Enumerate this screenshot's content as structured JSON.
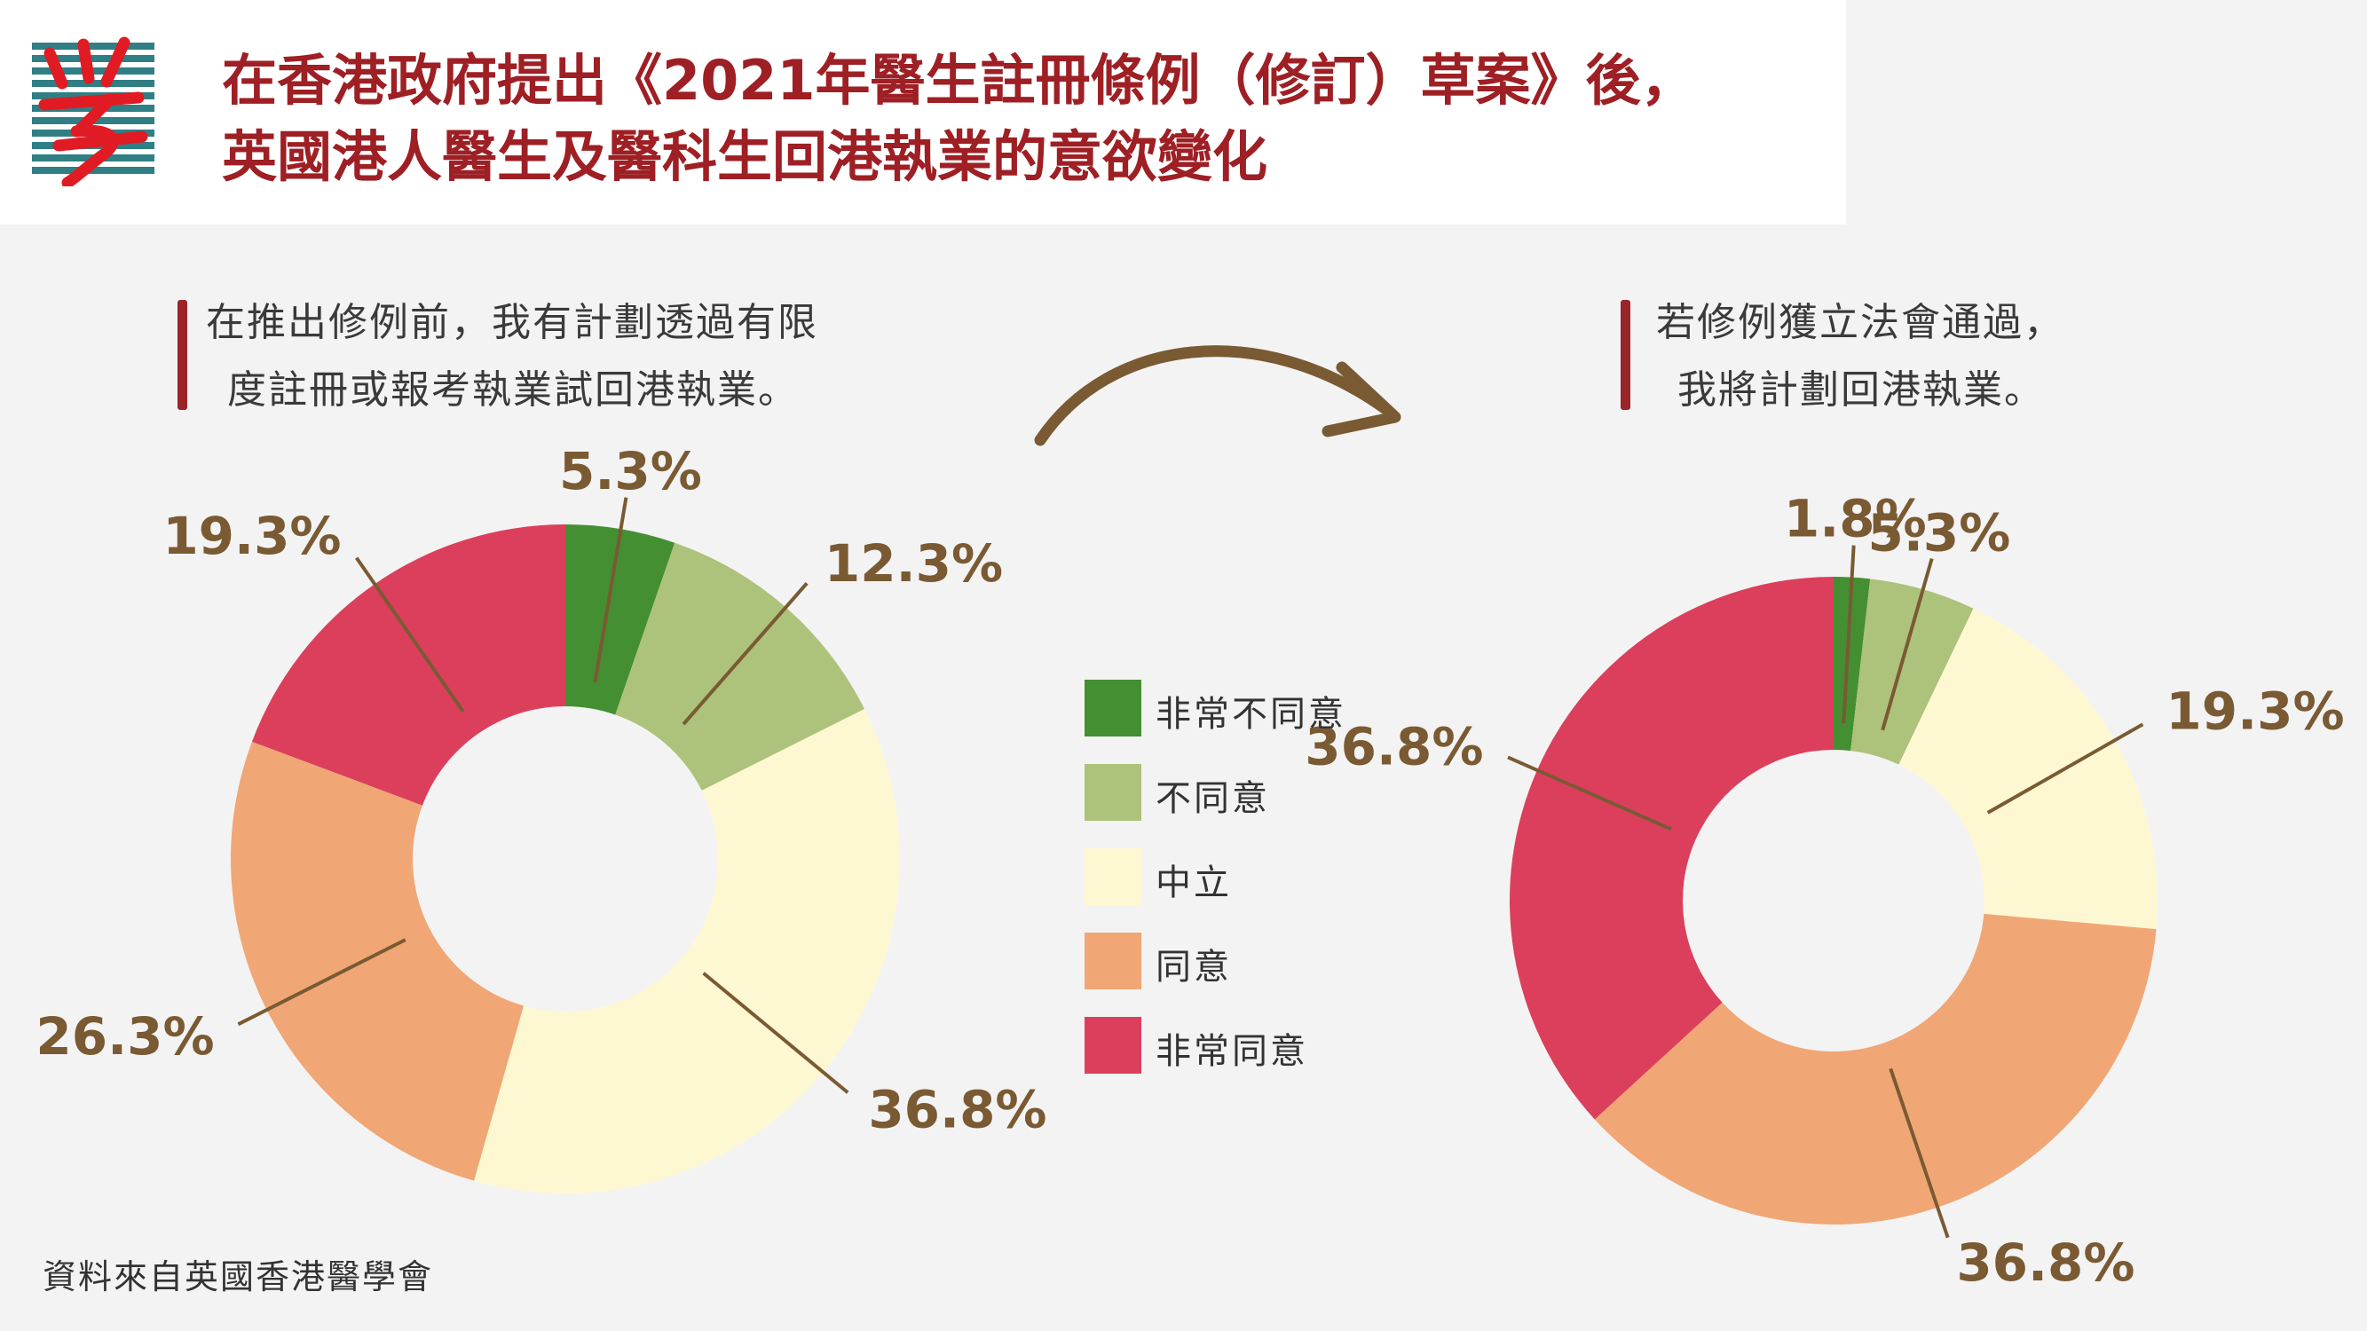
{
  "title_lines": [
    "在香港政府提出《2021年醫生註冊條例（修訂）草案》後，",
    "英國港人醫生及醫科生回港執業的意欲變化"
  ],
  "source": "資料來自英國香港醫學會",
  "legend": [
    {
      "label": "非常不同意",
      "color": "#448f32"
    },
    {
      "label": "不同意",
      "color": "#adc27a"
    },
    {
      "label": "中立",
      "color": "#fef8d2"
    },
    {
      "label": "同意",
      "color": "#f0a775"
    },
    {
      "label": "非常同意",
      "color": "#dc3f5c"
    }
  ],
  "chart_data": [
    {
      "type": "pie",
      "donut": true,
      "caption_lines": [
        "在推出修例前，我有計劃透過有限",
        "度註冊或報考執業試回港執業。"
      ],
      "categories": [
        "非常不同意",
        "不同意",
        "中立",
        "同意",
        "非常同意"
      ],
      "values": [
        5.3,
        12.3,
        36.8,
        26.3,
        19.3
      ],
      "labels": [
        "5.3%",
        "12.3%",
        "36.8%",
        "26.3%",
        "19.3%"
      ]
    },
    {
      "type": "pie",
      "donut": true,
      "caption_lines": [
        "若修例獲立法會通過，",
        "我將計劃回港執業。"
      ],
      "categories": [
        "非常不同意",
        "不同意",
        "中立",
        "同意",
        "非常同意"
      ],
      "values": [
        1.8,
        5.3,
        19.3,
        36.8,
        36.8
      ],
      "labels": [
        "1.8%",
        "5.3%",
        "19.3%",
        "36.8%",
        "36.8%"
      ]
    }
  ]
}
